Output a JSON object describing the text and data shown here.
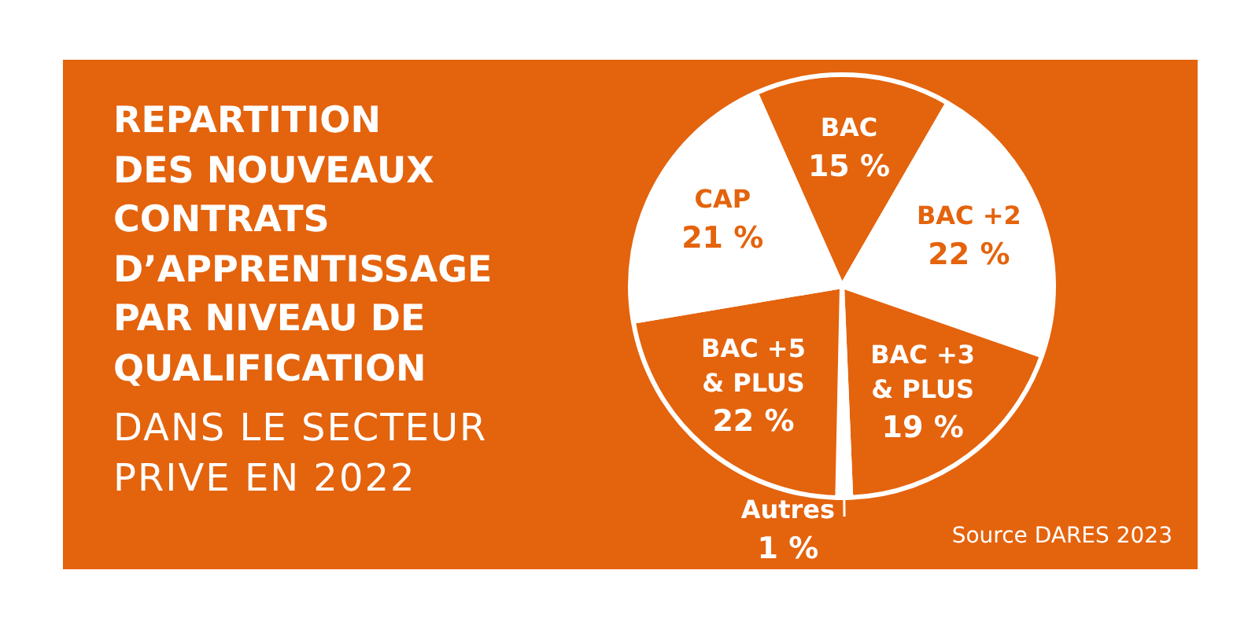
{
  "chart_data": {
    "type": "pie",
    "title": "REPARTITION\nDES NOUVEAUX\nCONTRATS\nD’APPRENTISSAGE\nPAR NIVEAU DE\nQUALIFICATION",
    "subtitle": "DANS LE SECTEUR\nPRIVE EN 2022",
    "categories": [
      "BAC",
      "BAC +2",
      "BAC +3 & PLUS",
      "Autres",
      "BAC +5 & PLUS",
      "CAP"
    ],
    "values": [
      15,
      22,
      19,
      1,
      22,
      21
    ],
    "value_labels": [
      "15 %",
      "22 %",
      "19 %",
      "1 %",
      "22 %",
      "21 %"
    ],
    "colors": [
      "#e4630d",
      "#ffffff",
      "#e4630d",
      "#ffffff",
      "#e4630d",
      "#ffffff"
    ],
    "annotations": [
      "Source DARES 2023"
    ]
  }
}
